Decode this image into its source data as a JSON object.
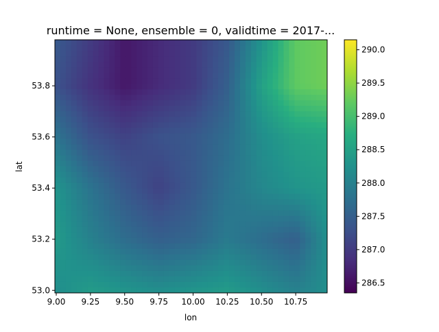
{
  "chart_data": {
    "type": "heatmap",
    "title": "runtime = None, ensemble = 0, validtime = 2017-...",
    "xlabel": "lon",
    "ylabel": "lat",
    "xlim": [
      8.99,
      10.98
    ],
    "ylim": [
      52.99,
      53.98
    ],
    "x_ticks": [
      "9.00",
      "9.25",
      "9.50",
      "9.75",
      "10.00",
      "10.25",
      "10.50",
      "10.75"
    ],
    "y_ticks": [
      "53.0",
      "53.2",
      "53.4",
      "53.6",
      "53.8"
    ],
    "colorbar": {
      "colormap": "viridis",
      "min": 286.35,
      "max": 290.15,
      "ticks": [
        "286.5",
        "287.0",
        "287.5",
        "288.0",
        "288.5",
        "289.0",
        "289.5",
        "290.0"
      ]
    },
    "grid_lon": [
      9.0,
      9.25,
      9.5,
      9.75,
      10.0,
      10.25,
      10.5,
      10.75,
      10.97
    ],
    "grid_lat": [
      53.97,
      53.8,
      53.6,
      53.4,
      53.2,
      53.0
    ],
    "values": [
      [
        287.4,
        287.0,
        286.6,
        286.8,
        287.0,
        287.4,
        288.3,
        289.2,
        289.3
      ],
      [
        287.3,
        286.9,
        286.6,
        286.8,
        287.0,
        287.5,
        288.5,
        289.2,
        289.3
      ],
      [
        287.8,
        287.3,
        287.1,
        287.3,
        287.4,
        287.7,
        288.2,
        288.5,
        288.6
      ],
      [
        288.3,
        287.8,
        287.4,
        287.1,
        287.4,
        287.8,
        288.1,
        288.3,
        288.4
      ],
      [
        288.4,
        288.0,
        287.7,
        287.5,
        287.6,
        287.9,
        287.7,
        287.5,
        288.2
      ],
      [
        288.2,
        288.4,
        288.3,
        288.2,
        288.3,
        288.4,
        288.2,
        288.0,
        288.2
      ]
    ]
  }
}
